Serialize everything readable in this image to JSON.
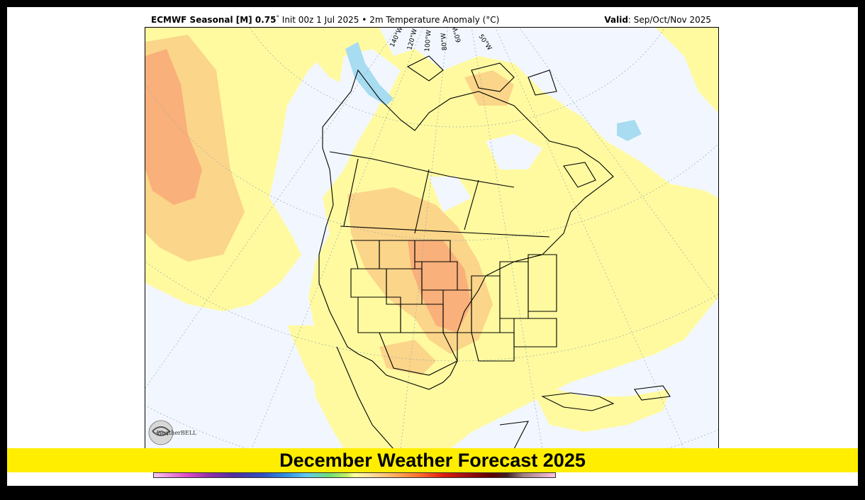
{
  "header": {
    "model": "ECMWF Seasonal [M] 0.75",
    "degree": "°",
    "init": "Init 00z 1 Jul 2025",
    "separator": "•",
    "variable": "2m Temperature Anomaly (°C)",
    "valid_label": "Valid",
    "valid_value": ": Sep/Oct/Nov 2025"
  },
  "map": {
    "longitude_labels": [
      "140°W",
      "120°W",
      "100°W",
      "80°W",
      "60°W",
      "50°W"
    ],
    "colors": {
      "ocean_near_normal": "#f2f7ff",
      "warm_slight": "#fffaa0",
      "warm_moderate": "#fbd58a",
      "warm_strong": "#f9b07a",
      "cool_slight": "#a8dcf0",
      "borders": "#000000"
    }
  },
  "logo": {
    "text": "WeatherBELL"
  },
  "banner": {
    "title": "December Weather Forecast 2025"
  }
}
